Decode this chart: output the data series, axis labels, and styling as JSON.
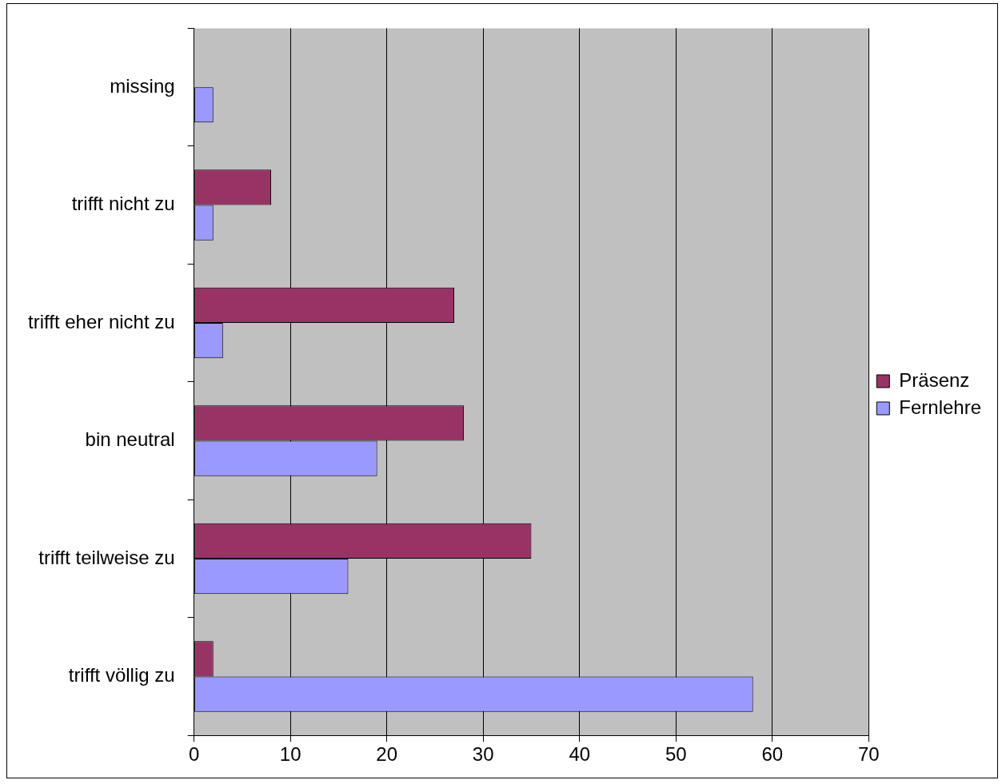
{
  "chart_data": {
    "type": "bar",
    "orientation": "horizontal",
    "categories": [
      "missing",
      "trifft nicht zu",
      "trifft eher nicht zu",
      "bin neutral",
      "trifft teilweise zu",
      "trifft völlig zu"
    ],
    "series": [
      {
        "name": "Präsenz",
        "color": "#993366",
        "values": [
          0,
          8,
          27,
          28,
          35,
          2
        ]
      },
      {
        "name": "Fernlehre",
        "color": "#9999ff",
        "values": [
          2,
          2,
          3,
          19,
          16,
          58
        ]
      }
    ],
    "xlim": [
      0,
      70
    ],
    "xticks": [
      0,
      10,
      20,
      30,
      40,
      50,
      60,
      70
    ],
    "grid": "x",
    "legend": "right"
  }
}
